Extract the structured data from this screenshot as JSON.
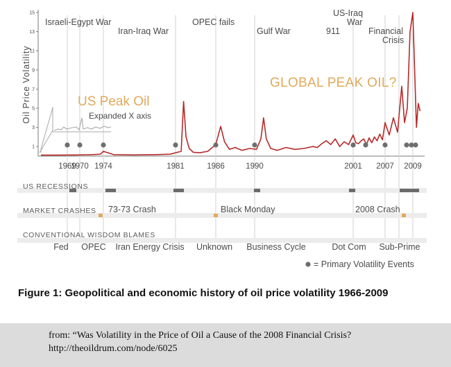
{
  "chart_data": {
    "type": "line",
    "ylabel": "Oil Price Volatility",
    "x_tick_labels": [
      "1969",
      "1970",
      "1974",
      "1981",
      "1986",
      "1990",
      "2001",
      "2007",
      "2009"
    ],
    "x_range": [
      1966,
      2009
    ],
    "y_tick_labels": [
      "1",
      "3",
      "5",
      "7",
      "9",
      "11",
      "13",
      "15"
    ],
    "ylim": [
      0,
      15
    ],
    "grid": false,
    "series": [
      {
        "name": "Oil Price Volatility",
        "color": "#b52a2a",
        "x": [
          1966,
          1968,
          1970,
          1972,
          1973.5,
          1974,
          1975,
          1977,
          1979,
          1980.5,
          1981.7,
          1982,
          1982.3,
          1982.7,
          1983.2,
          1984,
          1985,
          1986,
          1986.5,
          1986.9,
          1987.4,
          1988,
          1988.7,
          1989.5,
          1990.2,
          1990.7,
          1991,
          1991.3,
          1991.8,
          1992.5,
          1993.5,
          1994.5,
          1995.5,
          1996.5,
          1997,
          1997.5,
          1998,
          1998.5,
          1999,
          1999.5,
          2000,
          2000.5,
          2001,
          2001.5,
          2002,
          2002.5,
          2003,
          2003.5,
          2004,
          2004.5,
          2005,
          2005.5,
          2006,
          2006.5,
          2007,
          2007.3,
          2007.6,
          2007.9,
          2008.2,
          2008.4,
          2008.6,
          2008.8,
          2009,
          2009.2,
          2009.4,
          2009.6,
          2009.8
        ],
        "values": [
          0.1,
          0.1,
          0.12,
          0.15,
          0.2,
          0.5,
          0.15,
          0.12,
          0.15,
          0.2,
          0.5,
          5.7,
          2.0,
          0.8,
          0.4,
          0.35,
          0.5,
          1.2,
          3.1,
          1.5,
          0.7,
          0.9,
          0.6,
          0.8,
          0.7,
          1.8,
          4.0,
          1.8,
          0.8,
          0.6,
          0.9,
          0.7,
          0.8,
          1.0,
          0.9,
          1.3,
          1.6,
          1.2,
          1.8,
          1.0,
          1.5,
          1.2,
          2.2,
          1.4,
          1.3,
          1.6,
          1.8,
          1.2,
          1.9,
          1.4,
          2.0,
          1.6,
          2.3,
          1.7,
          3.5,
          2.2,
          4.0,
          2.5,
          7.3,
          3.5,
          5.0,
          13.0,
          15.0,
          9.0,
          3.0,
          5.5,
          4.7
        ]
      }
    ],
    "events": [
      "Israeli-Egypt War",
      "Iran-Iraq War",
      "OPEC fails",
      "Gulf War",
      "911",
      "US-Iraq",
      "War",
      "Financial",
      "Crisis"
    ],
    "annotations": {
      "us_peak_oil": "US Peak Oil",
      "expanded_x_axis": "Expanded X axis",
      "global_peak_oil": "GLOBAL PEAK OIL?"
    },
    "bands": {
      "recessions_label": "US RECESSIONS",
      "crashes_label": "MARKET CRASHES",
      "blames_label": "CONVENTIONAL WISDOM BLAMES",
      "crash_labels": [
        "73-73 Crash",
        "Black Monday",
        "2008 Crash"
      ],
      "blames": [
        "Fed",
        "OPEC",
        "Iran Energy Crisis",
        "Unknown",
        "Business Cycle",
        "Dot Com",
        "Sub-Prime"
      ]
    },
    "legend": "= Primary Volatility Events",
    "colors": {
      "line": "#b52a2a",
      "annotation_orange": "#e0a95a",
      "recession_bar": "#6b6b6b",
      "band_background": "#ececec",
      "crash_marker": "#e0a95a",
      "event_dot": "#6e6e6e"
    }
  },
  "caption": "Figure 1: Geopolitical and economic history of oil price volatility 1966-2009",
  "source": "from: “Was Volatility in the Price of Oil a Cause of the 2008 Financial Crisis? http://theoildrum.com/node/6025"
}
